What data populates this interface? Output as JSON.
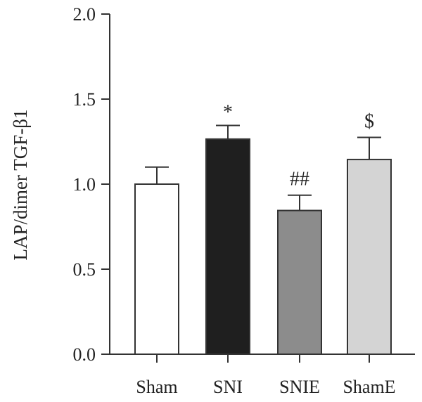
{
  "chart_data": {
    "type": "bar",
    "title": "",
    "xlabel": "",
    "ylabel": "LAP/dimer TGF-β1",
    "ylim": [
      0,
      2.0
    ],
    "yticks": [
      0.0,
      0.5,
      1.0,
      1.5,
      2.0
    ],
    "ytick_labels": [
      "0.0",
      "0.5",
      "1.0",
      "1.5",
      "2.0"
    ],
    "categories": [
      "Sham",
      "SNI",
      "SNIE",
      "ShamE"
    ],
    "values": [
      1.0,
      1.265,
      0.845,
      1.145
    ],
    "errors": [
      0.1,
      0.08,
      0.09,
      0.13
    ],
    "annotations": [
      "",
      "*",
      "##",
      "$"
    ],
    "colors": [
      "#ffffff",
      "#1f1f1f",
      "#8c8c8c",
      "#d4d4d4"
    ],
    "grid": false,
    "legend": "none"
  }
}
